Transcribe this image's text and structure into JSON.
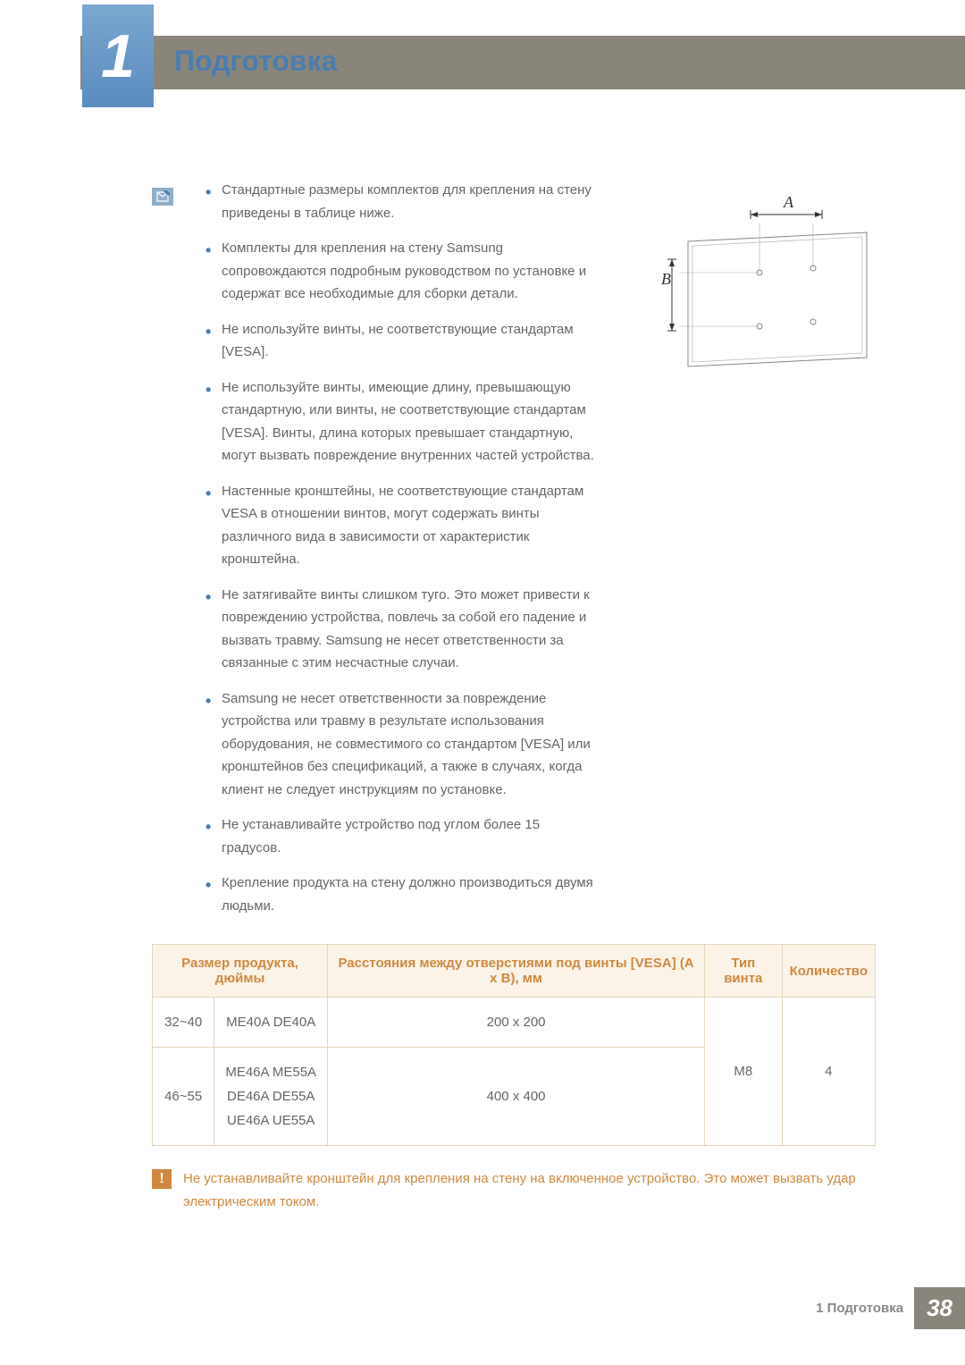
{
  "chapter": {
    "number": "1",
    "title": "Подготовка"
  },
  "bullets": {
    "img_label_A": "A",
    "img_label_B": "B",
    "items": [
      "Стандартные размеры комплектов для крепления на стену приведены в таблице ниже.",
      "Комплекты для крепления на стену Samsung сопровождаются подробным руководством по установке и содержат все необходимые для сборки детали.",
      "Не используйте винты, не соответствующие стандартам [VESA].",
      "Не используйте винты, имеющие длину, превышающую стандартную, или винты, не соответствующие стандартам [VESA]. Винты, длина которых превышает стандартную, могут вызвать повреждение внутренних частей устройства.",
      "Настенные кронштейны, не соответствующие стандартам VESA в отношении винтов, могут содержать винты различного вида в зависимости от характеристик кронштейна.",
      "Не затягивайте винты слишком туго. Это может привести к повреждению устройства, повлечь за собой его падение и вызвать травму. Samsung не несет ответственности за связанные с этим несчастные случаи.",
      "Samsung не несет ответственности за повреждение устройства или травму в результате использования оборудования, не совместимого со стандартом [VESA] или кронштейнов без спецификаций, а также в случаях, когда клиент не следует инструкциям по установке.",
      "Не устанавливайте устройство под углом более 15 градусов.",
      "Крепление продукта на стену должно производиться двумя людьми."
    ]
  },
  "table": {
    "header_bg": "#fcf3e8",
    "header_color": "#d08840",
    "border_color": "#e5d5be",
    "headers": {
      "size": "Размер продукта, дюймы",
      "vesa": "Расстояния между отверстиями под винты [VESA] (A x B), мм",
      "screw": "Тип винта",
      "qty": "Количество"
    },
    "rows": [
      {
        "size": "32~40",
        "models": "ME40A DE40A",
        "vesa": "200 x 200"
      },
      {
        "size": "46~55",
        "models": "ME46A ME55A\nDE46A DE55A\nUE46A UE55A",
        "vesa": "400 x 400"
      }
    ],
    "screw_type": "M8",
    "qty": "4"
  },
  "warning": {
    "text": "Не устанавливайте кронштейн для крепления на стену на включенное устройство. Это может вызвать удар электрическим током."
  },
  "footer": {
    "text": "1 Подготовка",
    "page": "38"
  },
  "colors": {
    "banner": "#8a857a",
    "tab_gradient_top": "#7ba8d0",
    "tab_gradient_bottom": "#5a8bc0",
    "title": "#4a7db0",
    "body_text": "#666666",
    "accent": "#d08840"
  }
}
